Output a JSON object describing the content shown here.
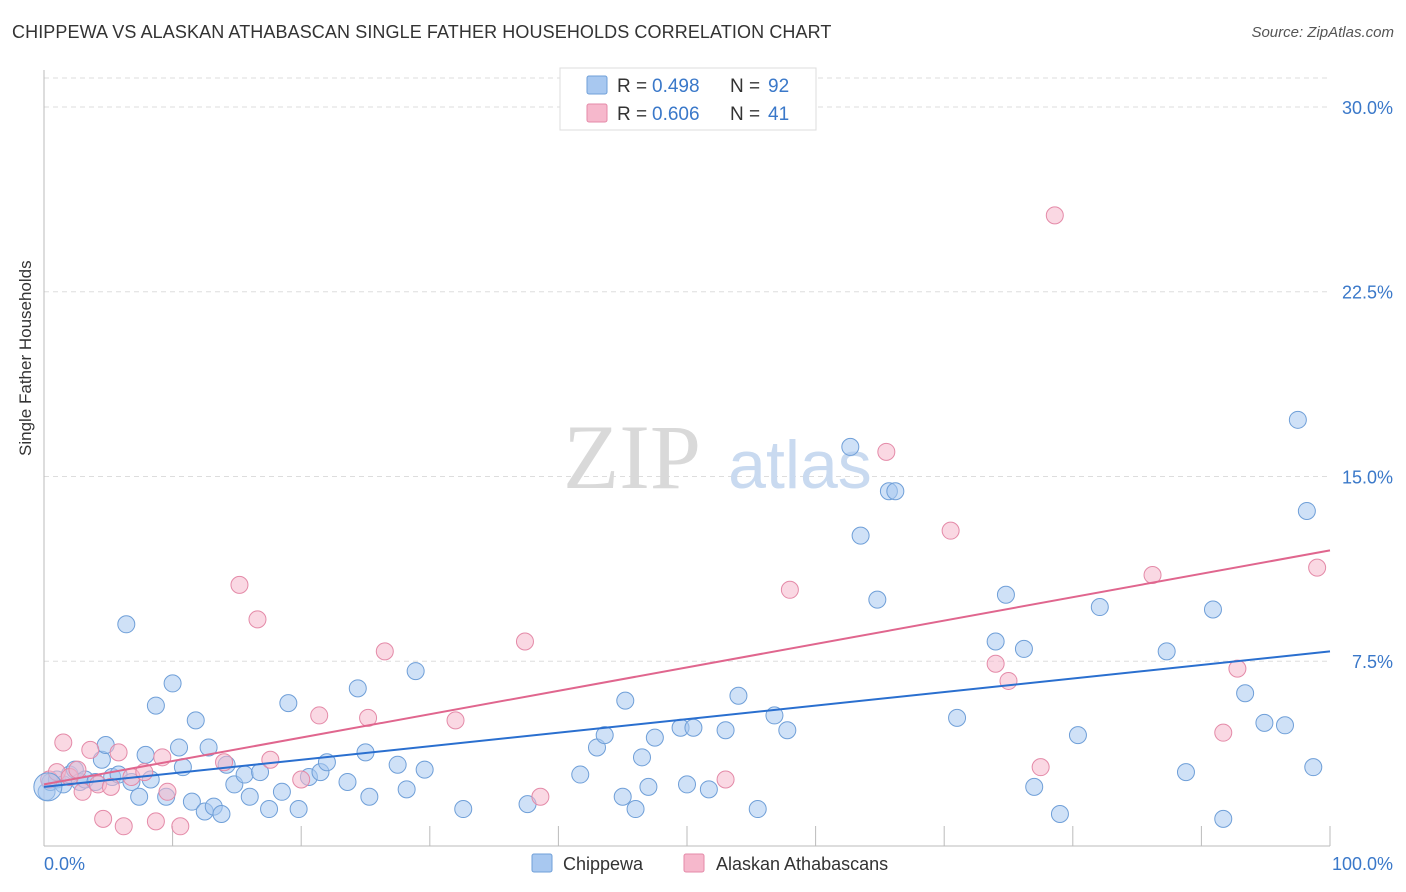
{
  "header": {
    "title": "CHIPPEWA VS ALASKAN ATHABASCAN SINGLE FATHER HOUSEHOLDS CORRELATION CHART",
    "source": "Source: ZipAtlas.com"
  },
  "watermark": {
    "zip": "ZIP",
    "atlas": "atlas"
  },
  "colors": {
    "blue_fill": "#a8c8f0",
    "blue_stroke": "#6f9fd8",
    "blue_line": "#2a6fcf",
    "pink_fill": "#f6b8cc",
    "pink_stroke": "#e48aa8",
    "pink_line": "#e0668e",
    "axis_text": "#3a78c9",
    "grid": "#dddddd"
  },
  "legend": {
    "rows": [
      {
        "r_label": "R =",
        "r_value": "0.498",
        "n_label": "N =",
        "n_value": "92"
      },
      {
        "r_label": "R =",
        "r_value": "0.606",
        "n_label": "N =",
        "n_value": "41"
      }
    ]
  },
  "bottom_legend": {
    "series1": "Chippewa",
    "series2": "Alaskan Athabascans"
  },
  "chart_data": {
    "type": "scatter",
    "title": "CHIPPEWA VS ALASKAN ATHABASCAN SINGLE FATHER HOUSEHOLDS CORRELATION CHART",
    "xlabel": "",
    "ylabel": "Single Father Households",
    "xlim": [
      0,
      100
    ],
    "ylim": [
      0,
      31.5
    ],
    "x_tick_labels": [
      "0.0%",
      "100.0%"
    ],
    "y_ticks": [
      7.5,
      15.0,
      22.5,
      30.0
    ],
    "y_tick_labels": [
      "7.5%",
      "15.0%",
      "22.5%",
      "30.0%"
    ],
    "grid": true,
    "series": [
      {
        "name": "Chippewa",
        "R": 0.498,
        "N": 92,
        "trend": {
          "x": [
            0,
            100
          ],
          "y": [
            2.4,
            7.9
          ]
        },
        "points": [
          [
            0.2,
            2.2
          ],
          [
            0.5,
            2.6
          ],
          [
            1.0,
            2.7
          ],
          [
            1.5,
            2.5
          ],
          [
            2.0,
            2.9
          ],
          [
            2.4,
            3.1
          ],
          [
            2.8,
            2.6
          ],
          [
            3.2,
            2.7
          ],
          [
            4.0,
            2.6
          ],
          [
            4.5,
            3.5
          ],
          [
            4.8,
            4.1
          ],
          [
            5.3,
            2.8
          ],
          [
            5.8,
            2.9
          ],
          [
            6.4,
            9.0
          ],
          [
            6.8,
            2.6
          ],
          [
            7.4,
            2.0
          ],
          [
            7.9,
            3.7
          ],
          [
            8.3,
            2.7
          ],
          [
            8.7,
            5.7
          ],
          [
            9.5,
            2.0
          ],
          [
            10.0,
            6.6
          ],
          [
            10.5,
            4.0
          ],
          [
            10.8,
            3.2
          ],
          [
            11.5,
            1.8
          ],
          [
            11.8,
            5.1
          ],
          [
            12.5,
            1.4
          ],
          [
            12.8,
            4.0
          ],
          [
            13.2,
            1.6
          ],
          [
            13.8,
            1.3
          ],
          [
            14.2,
            3.3
          ],
          [
            14.8,
            2.5
          ],
          [
            15.6,
            2.9
          ],
          [
            16.0,
            2.0
          ],
          [
            16.8,
            3.0
          ],
          [
            17.5,
            1.5
          ],
          [
            18.5,
            2.2
          ],
          [
            19.0,
            5.8
          ],
          [
            19.8,
            1.5
          ],
          [
            20.6,
            2.8
          ],
          [
            21.5,
            3.0
          ],
          [
            22.0,
            3.4
          ],
          [
            23.6,
            2.6
          ],
          [
            24.4,
            6.4
          ],
          [
            25.0,
            3.8
          ],
          [
            25.3,
            2.0
          ],
          [
            27.5,
            3.3
          ],
          [
            28.2,
            2.3
          ],
          [
            28.9,
            7.1
          ],
          [
            29.6,
            3.1
          ],
          [
            32.6,
            1.5
          ],
          [
            37.6,
            1.7
          ],
          [
            41.7,
            2.9
          ],
          [
            43.0,
            4.0
          ],
          [
            43.6,
            4.5
          ],
          [
            45.0,
            2.0
          ],
          [
            45.2,
            5.9
          ],
          [
            46.0,
            1.5
          ],
          [
            46.5,
            3.6
          ],
          [
            47.0,
            2.4
          ],
          [
            47.5,
            4.4
          ],
          [
            49.5,
            4.8
          ],
          [
            50.0,
            2.5
          ],
          [
            50.5,
            4.8
          ],
          [
            51.7,
            2.3
          ],
          [
            53.0,
            4.7
          ],
          [
            54.0,
            6.1
          ],
          [
            55.5,
            1.5
          ],
          [
            56.8,
            5.3
          ],
          [
            57.8,
            4.7
          ],
          [
            62.7,
            16.2
          ],
          [
            63.5,
            12.6
          ],
          [
            64.8,
            10.0
          ],
          [
            65.7,
            14.4
          ],
          [
            66.2,
            14.4
          ],
          [
            71.0,
            5.2
          ],
          [
            74.0,
            8.3
          ],
          [
            74.8,
            10.2
          ],
          [
            76.2,
            8.0
          ],
          [
            77.0,
            2.4
          ],
          [
            79.0,
            1.3
          ],
          [
            80.4,
            4.5
          ],
          [
            82.1,
            9.7
          ],
          [
            87.3,
            7.9
          ],
          [
            88.8,
            3.0
          ],
          [
            90.9,
            9.6
          ],
          [
            91.7,
            1.1
          ],
          [
            93.4,
            6.2
          ],
          [
            94.9,
            5.0
          ],
          [
            96.5,
            4.9
          ],
          [
            97.5,
            17.3
          ],
          [
            98.2,
            13.6
          ],
          [
            98.7,
            3.2
          ]
        ]
      },
      {
        "name": "Alaskan Athabascans",
        "R": 0.606,
        "N": 41,
        "trend": {
          "x": [
            0,
            100
          ],
          "y": [
            2.5,
            12.0
          ]
        },
        "points": [
          [
            0.4,
            2.7
          ],
          [
            1.0,
            3.0
          ],
          [
            1.5,
            4.2
          ],
          [
            2.0,
            2.8
          ],
          [
            2.6,
            3.1
          ],
          [
            3.0,
            2.2
          ],
          [
            3.6,
            3.9
          ],
          [
            4.2,
            2.5
          ],
          [
            4.6,
            1.1
          ],
          [
            5.2,
            2.4
          ],
          [
            5.8,
            3.8
          ],
          [
            6.2,
            0.8
          ],
          [
            6.8,
            2.8
          ],
          [
            7.8,
            3.0
          ],
          [
            8.7,
            1.0
          ],
          [
            9.2,
            3.6
          ],
          [
            9.6,
            2.2
          ],
          [
            10.6,
            0.8
          ],
          [
            14.0,
            3.4
          ],
          [
            15.2,
            10.6
          ],
          [
            16.6,
            9.2
          ],
          [
            17.6,
            3.5
          ],
          [
            20.0,
            2.7
          ],
          [
            21.4,
            5.3
          ],
          [
            25.2,
            5.2
          ],
          [
            26.5,
            7.9
          ],
          [
            32.0,
            5.1
          ],
          [
            37.4,
            8.3
          ],
          [
            38.6,
            2.0
          ],
          [
            53.0,
            2.7
          ],
          [
            58.0,
            10.4
          ],
          [
            65.5,
            16.0
          ],
          [
            70.5,
            12.8
          ],
          [
            74.0,
            7.4
          ],
          [
            75.0,
            6.7
          ],
          [
            77.5,
            3.2
          ],
          [
            78.6,
            25.6
          ],
          [
            86.2,
            11.0
          ],
          [
            91.7,
            4.6
          ],
          [
            92.8,
            7.2
          ],
          [
            99.0,
            11.3
          ]
        ]
      }
    ]
  }
}
